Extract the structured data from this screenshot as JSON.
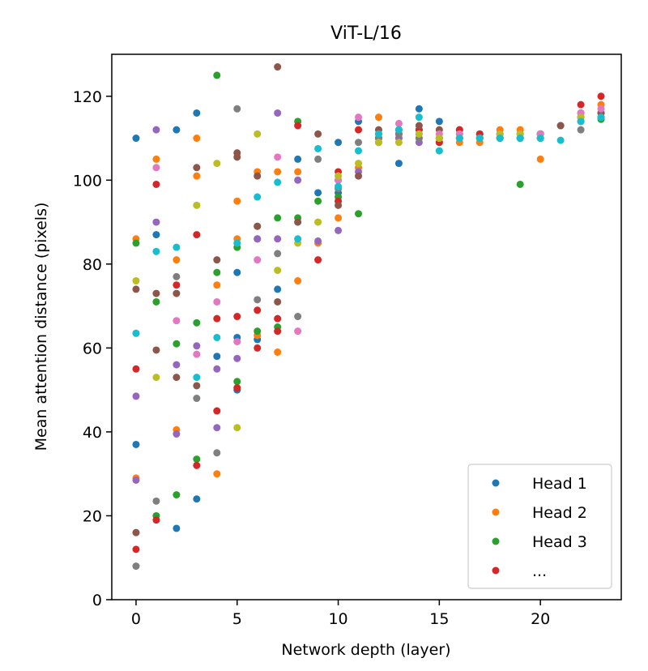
{
  "chart_data": {
    "type": "scatter",
    "title": "ViT-L/16",
    "xlabel": "Network depth (layer)",
    "ylabel": "Mean attention distance (pixels)",
    "xlim": [
      -1.2,
      24.0
    ],
    "ylim": [
      0,
      130
    ],
    "xticks": [
      0,
      5,
      10,
      15,
      20
    ],
    "yticks": [
      0,
      20,
      40,
      60,
      80,
      100,
      120
    ],
    "grid": false,
    "legend_position": "lower-right",
    "legend": [
      "Head 1",
      "Head 2",
      "Head 3",
      "..."
    ],
    "series": [
      {
        "name": "Head 1",
        "color": "#1f77b4",
        "points": [
          [
            0,
            110
          ],
          [
            0,
            37
          ],
          [
            1,
            87
          ],
          [
            2,
            112
          ],
          [
            2,
            17
          ],
          [
            3,
            116
          ],
          [
            3,
            24
          ],
          [
            4,
            58
          ],
          [
            5,
            78
          ],
          [
            5,
            62.5
          ],
          [
            5,
            50
          ],
          [
            6,
            62
          ],
          [
            6,
            86
          ],
          [
            7,
            74
          ],
          [
            8,
            105
          ],
          [
            9,
            97
          ],
          [
            10,
            97
          ],
          [
            10,
            109
          ],
          [
            11,
            114
          ],
          [
            12,
            110
          ],
          [
            13,
            104
          ],
          [
            14,
            117
          ],
          [
            15,
            114
          ],
          [
            16,
            112
          ],
          [
            17,
            111
          ],
          [
            18,
            111
          ],
          [
            19,
            111
          ],
          [
            20,
            111
          ],
          [
            21,
            113
          ],
          [
            22,
            114
          ],
          [
            23,
            116
          ]
        ]
      },
      {
        "name": "Head 2",
        "color": "#ff7f0e",
        "points": [
          [
            0,
            86
          ],
          [
            0,
            29
          ],
          [
            1,
            105
          ],
          [
            2,
            81
          ],
          [
            2,
            40.5
          ],
          [
            3,
            110
          ],
          [
            3,
            101
          ],
          [
            4,
            75
          ],
          [
            4,
            30
          ],
          [
            5,
            95
          ],
          [
            5,
            86
          ],
          [
            6,
            102
          ],
          [
            6,
            63
          ],
          [
            7,
            102
          ],
          [
            7,
            59
          ],
          [
            8,
            102
          ],
          [
            8,
            76
          ],
          [
            9,
            85
          ],
          [
            10,
            91
          ],
          [
            11,
            103
          ],
          [
            12,
            115
          ],
          [
            13,
            110
          ],
          [
            14,
            110
          ],
          [
            15,
            109
          ],
          [
            16,
            109
          ],
          [
            17,
            109
          ],
          [
            18,
            112
          ],
          [
            19,
            112
          ],
          [
            20,
            105
          ],
          [
            22,
            115
          ],
          [
            23,
            118
          ]
        ]
      },
      {
        "name": "Head 3",
        "color": "#2ca02c",
        "points": [
          [
            0,
            85
          ],
          [
            1,
            71
          ],
          [
            1,
            20
          ],
          [
            2,
            61
          ],
          [
            2,
            25
          ],
          [
            3,
            66
          ],
          [
            3,
            33.5
          ],
          [
            4,
            125
          ],
          [
            4,
            78
          ],
          [
            5,
            84
          ],
          [
            5,
            52
          ],
          [
            6,
            89
          ],
          [
            6,
            64
          ],
          [
            7,
            91
          ],
          [
            7,
            65
          ],
          [
            8,
            114
          ],
          [
            8,
            91
          ],
          [
            9,
            95
          ],
          [
            10,
            96
          ],
          [
            11,
            92
          ],
          [
            12,
            109
          ],
          [
            13,
            111
          ],
          [
            14,
            112
          ],
          [
            15,
            110
          ],
          [
            16,
            110
          ],
          [
            17,
            110
          ],
          [
            18,
            110
          ],
          [
            19,
            99
          ],
          [
            20,
            111
          ],
          [
            22,
            116
          ],
          [
            23,
            114.5
          ]
        ]
      },
      {
        "name": "...",
        "color": "#d62728",
        "points": [
          [
            0,
            55
          ],
          [
            0,
            12
          ],
          [
            1,
            99
          ],
          [
            1,
            19
          ],
          [
            2,
            75
          ],
          [
            3,
            87
          ],
          [
            3,
            32
          ],
          [
            4,
            67
          ],
          [
            4,
            45
          ],
          [
            5,
            67.5
          ],
          [
            5,
            50.5
          ],
          [
            6,
            69
          ],
          [
            6,
            60
          ],
          [
            7,
            67
          ],
          [
            7,
            64
          ],
          [
            8,
            113
          ],
          [
            9,
            81
          ],
          [
            10,
            102
          ],
          [
            10,
            95
          ],
          [
            11,
            112
          ],
          [
            12,
            110
          ],
          [
            13,
            111
          ],
          [
            14,
            112
          ],
          [
            15,
            109
          ],
          [
            16,
            112
          ],
          [
            17,
            111
          ],
          [
            18,
            111
          ],
          [
            19,
            111
          ],
          [
            20,
            111
          ],
          [
            22,
            118
          ],
          [
            23,
            120
          ]
        ]
      },
      {
        "name": "",
        "color": "#9467bd",
        "points": [
          [
            0,
            48.5
          ],
          [
            0,
            28.5
          ],
          [
            1,
            112
          ],
          [
            1,
            90
          ],
          [
            2,
            56
          ],
          [
            2,
            39.5
          ],
          [
            3,
            60.5
          ],
          [
            4,
            41
          ],
          [
            4,
            55
          ],
          [
            5,
            57.5
          ],
          [
            6,
            86
          ],
          [
            7,
            116
          ],
          [
            7,
            86
          ],
          [
            8,
            100
          ],
          [
            9,
            85.5
          ],
          [
            10,
            88
          ],
          [
            11,
            102
          ],
          [
            12,
            111
          ],
          [
            13,
            110
          ],
          [
            14,
            109
          ],
          [
            15,
            110
          ],
          [
            16,
            110
          ],
          [
            17,
            110
          ],
          [
            18,
            110
          ],
          [
            19,
            110
          ],
          [
            20,
            110
          ],
          [
            22,
            116
          ],
          [
            23,
            116
          ]
        ]
      },
      {
        "name": "",
        "color": "#8c564b",
        "points": [
          [
            0,
            74
          ],
          [
            0,
            16
          ],
          [
            1,
            73
          ],
          [
            1,
            59.5
          ],
          [
            2,
            73
          ],
          [
            2,
            53
          ],
          [
            3,
            103
          ],
          [
            3,
            51
          ],
          [
            4,
            81
          ],
          [
            5,
            106.5
          ],
          [
            5,
            105.5
          ],
          [
            6,
            101
          ],
          [
            6,
            89
          ],
          [
            7,
            127
          ],
          [
            7,
            71
          ],
          [
            8,
            90
          ],
          [
            9,
            111
          ],
          [
            10,
            94
          ],
          [
            10,
            100
          ],
          [
            11,
            101
          ],
          [
            12,
            112
          ],
          [
            13,
            112
          ],
          [
            14,
            113
          ],
          [
            15,
            112
          ],
          [
            16,
            111
          ],
          [
            17,
            110
          ],
          [
            18,
            110
          ],
          [
            19,
            110
          ],
          [
            20,
            111
          ],
          [
            21,
            113
          ],
          [
            22,
            115
          ],
          [
            23,
            116
          ]
        ]
      },
      {
        "name": "",
        "color": "#e377c2",
        "points": [
          [
            0,
            63.5
          ],
          [
            1,
            103
          ],
          [
            2,
            66.5
          ],
          [
            3,
            58.5
          ],
          [
            4,
            71
          ],
          [
            5,
            61.5
          ],
          [
            6,
            81
          ],
          [
            7,
            105.5
          ],
          [
            8,
            64
          ],
          [
            10,
            100
          ],
          [
            11,
            115
          ],
          [
            12,
            111
          ],
          [
            13,
            113.5
          ],
          [
            14,
            111
          ],
          [
            15,
            111
          ],
          [
            16,
            111
          ],
          [
            17,
            110
          ],
          [
            18,
            111
          ],
          [
            19,
            111
          ],
          [
            20,
            111
          ],
          [
            22,
            116
          ],
          [
            23,
            117
          ]
        ]
      },
      {
        "name": "",
        "color": "#7f7f7f",
        "points": [
          [
            0,
            8
          ],
          [
            1,
            23.5
          ],
          [
            2,
            77
          ],
          [
            3,
            48
          ],
          [
            4,
            35
          ],
          [
            5,
            117
          ],
          [
            6,
            71.5
          ],
          [
            7,
            82.5
          ],
          [
            8,
            67.5
          ],
          [
            9,
            105
          ],
          [
            10,
            98
          ],
          [
            11,
            109
          ],
          [
            12,
            110
          ],
          [
            13,
            111
          ],
          [
            14,
            110
          ],
          [
            15,
            110
          ],
          [
            16,
            110
          ],
          [
            17,
            110
          ],
          [
            18,
            110
          ],
          [
            19,
            110
          ],
          [
            20,
            110
          ],
          [
            22,
            112
          ],
          [
            23,
            115
          ]
        ]
      },
      {
        "name": "",
        "color": "#bcbd22",
        "points": [
          [
            0,
            76
          ],
          [
            1,
            53
          ],
          [
            3,
            94
          ],
          [
            4,
            104
          ],
          [
            5,
            41
          ],
          [
            6,
            111
          ],
          [
            7,
            78.5
          ],
          [
            8,
            85
          ],
          [
            9,
            90
          ],
          [
            10,
            101
          ],
          [
            11,
            104
          ],
          [
            12,
            109
          ],
          [
            13,
            109
          ],
          [
            14,
            111
          ],
          [
            15,
            110
          ],
          [
            16,
            110
          ],
          [
            17,
            110
          ],
          [
            18,
            111
          ],
          [
            19,
            111
          ],
          [
            20,
            110
          ],
          [
            22,
            115
          ],
          [
            23,
            115
          ]
        ]
      },
      {
        "name": "",
        "color": "#17becf",
        "points": [
          [
            0,
            63.5
          ],
          [
            1,
            83
          ],
          [
            2,
            84
          ],
          [
            3,
            53
          ],
          [
            4,
            62.5
          ],
          [
            5,
            85
          ],
          [
            6,
            96
          ],
          [
            7,
            99.5
          ],
          [
            8,
            86
          ],
          [
            9,
            107.5
          ],
          [
            10,
            98.5
          ],
          [
            11,
            107
          ],
          [
            12,
            111
          ],
          [
            13,
            112
          ],
          [
            14,
            115
          ],
          [
            15,
            107
          ],
          [
            16,
            110
          ],
          [
            17,
            110
          ],
          [
            18,
            110
          ],
          [
            19,
            110
          ],
          [
            20,
            110
          ],
          [
            21,
            109.5
          ],
          [
            22,
            114
          ],
          [
            23,
            115
          ]
        ]
      }
    ]
  }
}
